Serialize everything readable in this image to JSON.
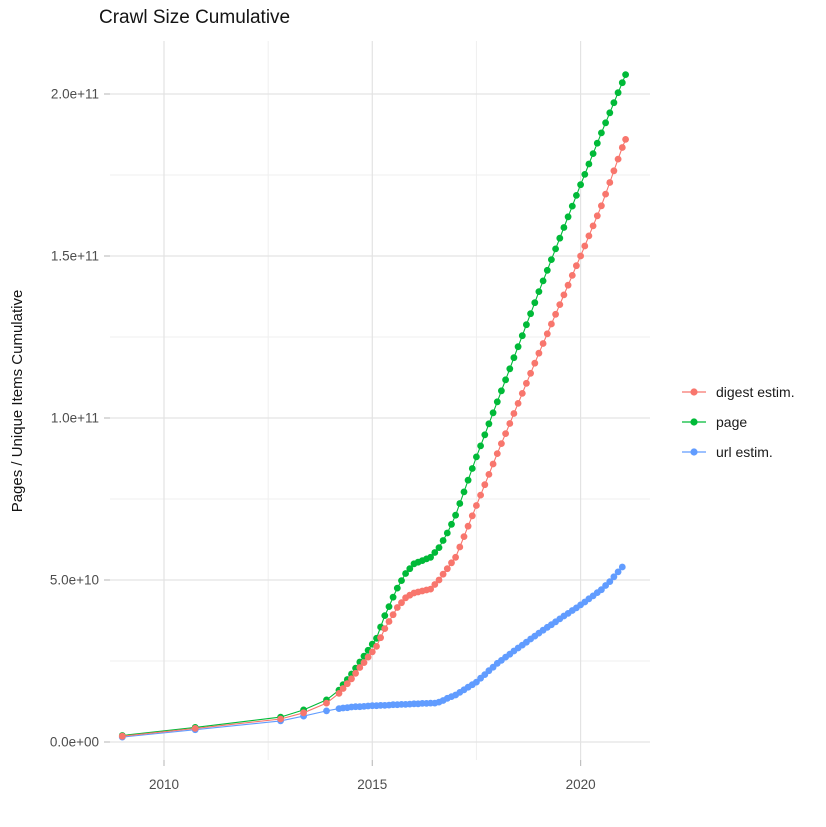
{
  "colors": {
    "background": "#FFFFFF",
    "grid_major": "#E3E3E3",
    "grid_minor": "#EFEFEF",
    "tick_mark": "#C0C0C0",
    "tick_text": "#4D4D4D",
    "title_text": "#141414"
  },
  "chart_data": {
    "type": "scatter",
    "title": "Crawl Size Cumulative",
    "xlabel": "",
    "ylabel": "Pages / Unique Items Cumulative",
    "grid": true,
    "legend_position": "right",
    "values_unit": "y values stored in units of 1e9 pages",
    "x_axis": {
      "range": [
        2008.7,
        2021.66
      ],
      "major_ticks": [
        2010,
        2015,
        2020
      ],
      "tick_labels": [
        "2010",
        "2015",
        "2020"
      ],
      "minor_gridlines": [
        2012.5,
        2017.5
      ]
    },
    "y_axis": {
      "range": [
        0,
        216
      ],
      "major_ticks": [
        0,
        50,
        100,
        150,
        200
      ],
      "tick_labels": [
        "0.0e+00",
        "5.0e+10",
        "1.0e+11",
        "1.5e+11",
        "2.0e+11"
      ],
      "minor_gridlines": [
        25,
        75,
        125,
        175
      ]
    },
    "legend": {
      "items": [
        {
          "id": "digest-estim",
          "label": "digest estim.",
          "color": "#F8766D"
        },
        {
          "id": "page",
          "label": "page",
          "color": "#00BA38"
        },
        {
          "id": "url-estim",
          "label": "url estim.",
          "color": "#619CFF"
        }
      ]
    },
    "series": [
      {
        "id": "url-estim",
        "name": "url estim.",
        "color": "#619CFF",
        "points": [
          [
            2009,
            1.5
          ],
          [
            2010.75,
            3.8
          ],
          [
            2012.8,
            6.5
          ],
          [
            2013.35,
            8
          ],
          [
            2013.9,
            9.6
          ],
          [
            2014.2,
            10.3
          ],
          [
            2014.3,
            10.5
          ],
          [
            2014.4,
            10.6
          ],
          [
            2014.5,
            10.8
          ],
          [
            2014.6,
            10.9
          ],
          [
            2014.7,
            10.9
          ],
          [
            2014.8,
            11
          ],
          [
            2014.9,
            11.1
          ],
          [
            2015,
            11.2
          ],
          [
            2015.1,
            11.2
          ],
          [
            2015.2,
            11.3
          ],
          [
            2015.3,
            11.3
          ],
          [
            2015.4,
            11.4
          ],
          [
            2015.5,
            11.5
          ],
          [
            2015.6,
            11.5
          ],
          [
            2015.7,
            11.6
          ],
          [
            2015.8,
            11.6
          ],
          [
            2015.9,
            11.7
          ],
          [
            2016,
            11.8
          ],
          [
            2016.1,
            11.8
          ],
          [
            2016.2,
            11.9
          ],
          [
            2016.3,
            11.9
          ],
          [
            2016.4,
            12
          ],
          [
            2016.5,
            12
          ],
          [
            2016.6,
            12.3
          ],
          [
            2016.7,
            12.8
          ],
          [
            2016.8,
            13.5
          ],
          [
            2016.9,
            14
          ],
          [
            2017,
            14.5
          ],
          [
            2017.1,
            15.3
          ],
          [
            2017.2,
            16.1
          ],
          [
            2017.3,
            16.9
          ],
          [
            2017.4,
            17.7
          ],
          [
            2017.5,
            18.5
          ],
          [
            2017.6,
            19.7
          ],
          [
            2017.7,
            20.8
          ],
          [
            2017.8,
            22
          ],
          [
            2017.9,
            23.1
          ],
          [
            2018,
            24.3
          ],
          [
            2018.1,
            25.2
          ],
          [
            2018.2,
            26.2
          ],
          [
            2018.3,
            27.1
          ],
          [
            2018.4,
            28.1
          ],
          [
            2018.5,
            29
          ],
          [
            2018.6,
            29.9
          ],
          [
            2018.7,
            30.8
          ],
          [
            2018.8,
            31.8
          ],
          [
            2018.9,
            32.7
          ],
          [
            2019,
            33.6
          ],
          [
            2019.1,
            34.5
          ],
          [
            2019.2,
            35.4
          ],
          [
            2019.3,
            36.2
          ],
          [
            2019.4,
            37.1
          ],
          [
            2019.5,
            38
          ],
          [
            2019.6,
            38.9
          ],
          [
            2019.7,
            39.7
          ],
          [
            2019.8,
            40.6
          ],
          [
            2019.9,
            41.4
          ],
          [
            2020,
            42.3
          ],
          [
            2020.1,
            43.2
          ],
          [
            2020.2,
            44.2
          ],
          [
            2020.3,
            45.1
          ],
          [
            2020.4,
            46.1
          ],
          [
            2020.5,
            47
          ],
          [
            2020.6,
            48.3
          ],
          [
            2020.7,
            49.5
          ],
          [
            2020.8,
            51
          ],
          [
            2020.9,
            52.5
          ],
          [
            2021,
            54
          ]
        ]
      },
      {
        "id": "page",
        "name": "page",
        "color": "#00BA38",
        "points": [
          [
            2009,
            2
          ],
          [
            2010.75,
            4.5
          ],
          [
            2012.8,
            7.7
          ],
          [
            2013.35,
            9.9
          ],
          [
            2013.9,
            13
          ],
          [
            2014.2,
            16
          ],
          [
            2014.3,
            17.7
          ],
          [
            2014.4,
            19.3
          ],
          [
            2014.5,
            21
          ],
          [
            2014.6,
            22.8
          ],
          [
            2014.7,
            24.7
          ],
          [
            2014.8,
            26.5
          ],
          [
            2014.9,
            28.3
          ],
          [
            2015,
            30.2
          ],
          [
            2015.1,
            32
          ],
          [
            2015.2,
            35.5
          ],
          [
            2015.3,
            39
          ],
          [
            2015.4,
            41.8
          ],
          [
            2015.5,
            44.7
          ],
          [
            2015.6,
            47.5
          ],
          [
            2015.7,
            49.8
          ],
          [
            2015.8,
            52
          ],
          [
            2015.9,
            53.5
          ],
          [
            2016,
            55
          ],
          [
            2016.1,
            55.5
          ],
          [
            2016.2,
            56
          ],
          [
            2016.3,
            56.5
          ],
          [
            2016.4,
            57
          ],
          [
            2016.5,
            58.5
          ],
          [
            2016.6,
            60
          ],
          [
            2016.7,
            62.2
          ],
          [
            2016.8,
            64.5
          ],
          [
            2016.9,
            67.2
          ],
          [
            2017,
            70
          ],
          [
            2017.1,
            73.6
          ],
          [
            2017.2,
            77.2
          ],
          [
            2017.3,
            80.8
          ],
          [
            2017.4,
            84.4
          ],
          [
            2017.5,
            88
          ],
          [
            2017.6,
            91.4
          ],
          [
            2017.7,
            94.8
          ],
          [
            2017.8,
            98.2
          ],
          [
            2017.9,
            101.6
          ],
          [
            2018,
            105
          ],
          [
            2018.1,
            108.4
          ],
          [
            2018.2,
            111.8
          ],
          [
            2018.3,
            115.2
          ],
          [
            2018.4,
            118.6
          ],
          [
            2018.5,
            122
          ],
          [
            2018.6,
            125.4
          ],
          [
            2018.7,
            128.8
          ],
          [
            2018.8,
            132.2
          ],
          [
            2018.9,
            135.6
          ],
          [
            2019,
            139
          ],
          [
            2019.1,
            142.3
          ],
          [
            2019.2,
            145.6
          ],
          [
            2019.3,
            148.9
          ],
          [
            2019.4,
            152.2
          ],
          [
            2019.5,
            155.5
          ],
          [
            2019.6,
            158.8
          ],
          [
            2019.7,
            162.1
          ],
          [
            2019.8,
            165.4
          ],
          [
            2019.9,
            168.7
          ],
          [
            2020,
            172
          ],
          [
            2020.1,
            175.2
          ],
          [
            2020.2,
            178.4
          ],
          [
            2020.3,
            181.6
          ],
          [
            2020.4,
            184.8
          ],
          [
            2020.5,
            188
          ],
          [
            2020.6,
            191.1
          ],
          [
            2020.7,
            194.2
          ],
          [
            2020.8,
            197.3
          ],
          [
            2020.9,
            200.4
          ],
          [
            2021,
            203.5
          ],
          [
            2021.08,
            206
          ]
        ]
      },
      {
        "id": "digest-estim",
        "name": "digest estim.",
        "color": "#F8766D",
        "points": [
          [
            2009,
            1.8
          ],
          [
            2010.75,
            4.2
          ],
          [
            2012.8,
            7.1
          ],
          [
            2013.35,
            9
          ],
          [
            2013.9,
            12
          ],
          [
            2014.2,
            15
          ],
          [
            2014.3,
            16.5
          ],
          [
            2014.4,
            18
          ],
          [
            2014.5,
            19.5
          ],
          [
            2014.6,
            21.2
          ],
          [
            2014.7,
            23
          ],
          [
            2014.8,
            24.5
          ],
          [
            2014.9,
            26.2
          ],
          [
            2015,
            27.8
          ],
          [
            2015.1,
            29.5
          ],
          [
            2015.2,
            32.2
          ],
          [
            2015.3,
            35
          ],
          [
            2015.4,
            37.2
          ],
          [
            2015.5,
            39.3
          ],
          [
            2015.6,
            41.5
          ],
          [
            2015.7,
            43
          ],
          [
            2015.8,
            44.5
          ],
          [
            2015.9,
            45.3
          ],
          [
            2016,
            46
          ],
          [
            2016.1,
            46.3
          ],
          [
            2016.2,
            46.6
          ],
          [
            2016.3,
            46.9
          ],
          [
            2016.4,
            47.2
          ],
          [
            2016.5,
            48.6
          ],
          [
            2016.6,
            50
          ],
          [
            2016.7,
            51.8
          ],
          [
            2016.8,
            53.5
          ],
          [
            2016.9,
            55.3
          ],
          [
            2017,
            57
          ],
          [
            2017.1,
            60.2
          ],
          [
            2017.2,
            63.4
          ],
          [
            2017.3,
            66.6
          ],
          [
            2017.4,
            69.8
          ],
          [
            2017.5,
            73
          ],
          [
            2017.6,
            76.2
          ],
          [
            2017.7,
            79.4
          ],
          [
            2017.8,
            82.6
          ],
          [
            2017.9,
            85.8
          ],
          [
            2018,
            89
          ],
          [
            2018.1,
            92.1
          ],
          [
            2018.2,
            95.2
          ],
          [
            2018.3,
            98.3
          ],
          [
            2018.4,
            101.4
          ],
          [
            2018.5,
            104.5
          ],
          [
            2018.6,
            107.6
          ],
          [
            2018.7,
            110.7
          ],
          [
            2018.8,
            113.8
          ],
          [
            2018.9,
            116.9
          ],
          [
            2019,
            120
          ],
          [
            2019.1,
            123
          ],
          [
            2019.2,
            126
          ],
          [
            2019.3,
            129
          ],
          [
            2019.4,
            132
          ],
          [
            2019.5,
            135
          ],
          [
            2019.6,
            138
          ],
          [
            2019.7,
            141
          ],
          [
            2019.8,
            144
          ],
          [
            2019.9,
            147
          ],
          [
            2020,
            150
          ],
          [
            2020.1,
            153.1
          ],
          [
            2020.2,
            156.2
          ],
          [
            2020.3,
            159.3
          ],
          [
            2020.4,
            162.4
          ],
          [
            2020.5,
            165.5
          ],
          [
            2020.6,
            169.1
          ],
          [
            2020.7,
            172.7
          ],
          [
            2020.8,
            176.3
          ],
          [
            2020.9,
            179.9
          ],
          [
            2021,
            183.5
          ],
          [
            2021.08,
            186
          ]
        ]
      }
    ]
  }
}
